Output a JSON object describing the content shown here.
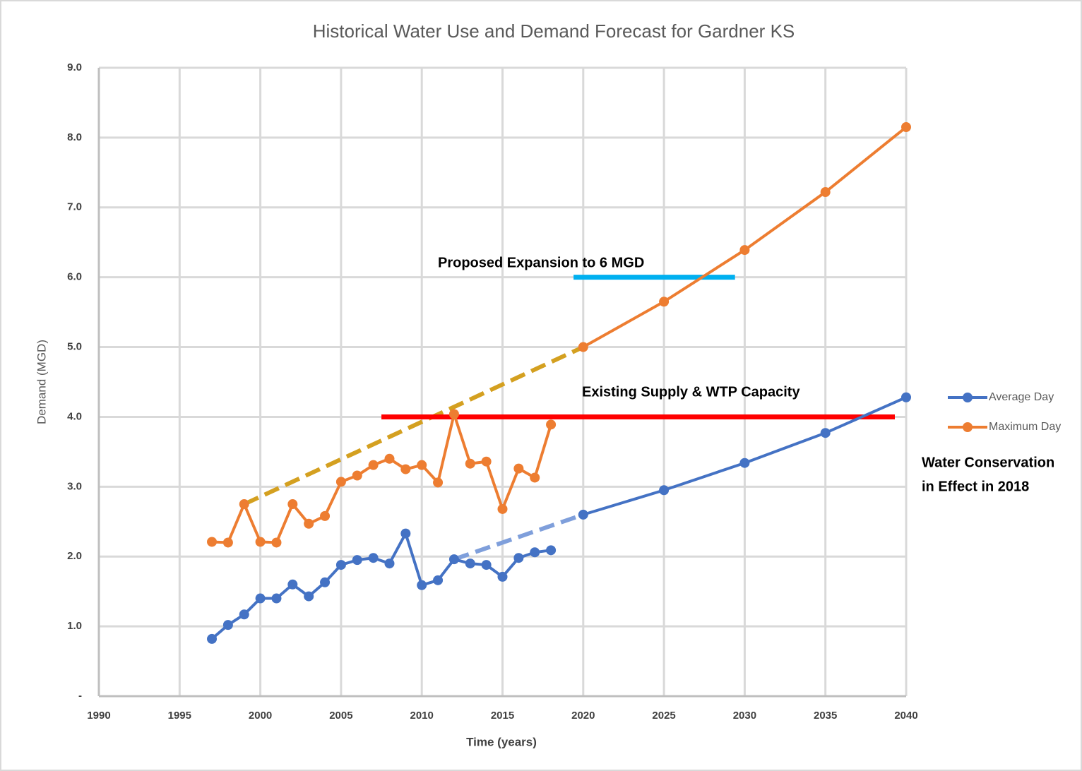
{
  "chart_data": {
    "type": "line",
    "title": "Historical Water Use and Demand Forecast for Gardner KS",
    "x_label": "Time (years)",
    "y_label": "Demand (MGD)",
    "xlim": [
      1990,
      2040
    ],
    "xticks": [
      1990,
      1995,
      2000,
      2005,
      2010,
      2015,
      2020,
      2025,
      2030,
      2035,
      2040
    ],
    "ylim": [
      0,
      9
    ],
    "yticks": [
      {
        "value": 0,
        "label": "-"
      },
      {
        "value": 1,
        "label": "1.0"
      },
      {
        "value": 2,
        "label": "2.0"
      },
      {
        "value": 3,
        "label": "3.0"
      },
      {
        "value": 4,
        "label": "4.0"
      },
      {
        "value": 5,
        "label": "5.0"
      },
      {
        "value": 6,
        "label": "6.0"
      },
      {
        "value": 7,
        "label": "7.0"
      },
      {
        "value": 8,
        "label": "8.0"
      },
      {
        "value": 9,
        "label": "9.0"
      }
    ],
    "grid": true,
    "legend": "right",
    "x": [
      1997,
      1998,
      1999,
      2000,
      2001,
      2002,
      2003,
      2004,
      2005,
      2006,
      2007,
      2008,
      2009,
      2010,
      2011,
      2012,
      2013,
      2014,
      2015,
      2016,
      2017,
      2018,
      2019,
      2020,
      2025,
      2030,
      2035,
      2040
    ],
    "series": [
      {
        "name": "Average Day",
        "color": "#4472c4",
        "values": [
          0.82,
          1.02,
          1.17,
          1.4,
          1.4,
          1.6,
          1.43,
          1.63,
          1.88,
          1.95,
          1.98,
          1.9,
          2.33,
          1.59,
          1.66,
          1.96,
          1.9,
          1.88,
          1.71,
          1.98,
          2.06,
          2.09,
          null,
          2.6,
          2.95,
          3.34,
          3.77,
          4.28
        ]
      },
      {
        "name": "Maximum Day",
        "color": "#ed7d31",
        "values": [
          2.21,
          2.2,
          2.75,
          2.21,
          2.2,
          2.75,
          2.47,
          2.58,
          3.07,
          3.16,
          3.31,
          3.4,
          3.25,
          3.31,
          3.06,
          4.04,
          3.33,
          3.36,
          2.68,
          3.26,
          3.13,
          3.89,
          null,
          5.0,
          5.65,
          6.39,
          7.22,
          8.15
        ]
      }
    ],
    "reference_lines": [
      {
        "x": [
          1999,
          2020
        ],
        "values": [
          2.75,
          5.0
        ],
        "color": "#d4a020",
        "dashed": true
      },
      {
        "x": [
          2012,
          2020
        ],
        "values": [
          1.96,
          2.6
        ],
        "color": "#7f9fdb",
        "dashed": true
      },
      {
        "x": [
          2007.5,
          2039.3
        ],
        "values": [
          4.0,
          4.0
        ],
        "color": "#ff0000",
        "dashed": false
      },
      {
        "x": [
          2019.4,
          2029.4
        ],
        "values": [
          6.0,
          6.0
        ],
        "color": "#00b0f0",
        "dashed": false
      }
    ],
    "annotations": [
      "Proposed Expansion to 6 MGD",
      "Existing Supply & WTP Capacity",
      "Water Conservation",
      "in Effect in 2018"
    ]
  }
}
